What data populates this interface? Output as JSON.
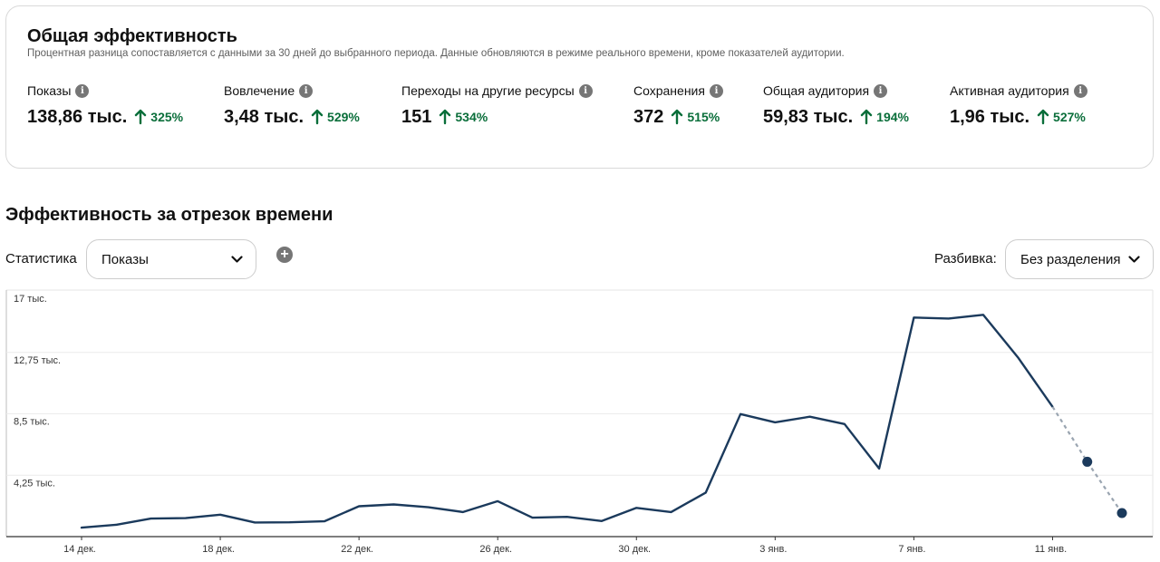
{
  "summary": {
    "title": "Общая эффективность",
    "subtitle": "Процентная разница сопоставляется с данными за 30 дней до выбранного периода. Данные обновляются в режиме реального времени, кроме показателей аудитории.",
    "metrics": [
      {
        "label": "Показы",
        "value": "138,86 тыс.",
        "change": "325%"
      },
      {
        "label": "Вовлечение",
        "value": "3,48 тыс.",
        "change": "529%"
      },
      {
        "label": "Переходы на другие ресурсы",
        "value": "151",
        "change": "534%"
      },
      {
        "label": "Сохранения",
        "value": "372",
        "change": "515%"
      },
      {
        "label": "Общая аудитория",
        "value": "59,83 тыс.",
        "change": "194%"
      },
      {
        "label": "Активная аудитория",
        "value": "1,96 тыс.",
        "change": "527%"
      }
    ],
    "info_icon": "info-icon",
    "trend_icon": "arrow-up-icon",
    "positive_color": "#0a6e3a"
  },
  "timeline": {
    "title": "Эффективность за отрезок времени",
    "stat_label": "Статистика",
    "stat_selected": "Показы",
    "add_icon": "plus-circle-icon",
    "breakdown_label": "Разбивка:",
    "breakdown_selected": "Без разделения"
  },
  "chart_data": {
    "type": "line",
    "x": [
      "14 дек.",
      "15 дек.",
      "16 дек.",
      "17 дек.",
      "18 дек.",
      "19 дек.",
      "20 дек.",
      "21 дек.",
      "22 дек.",
      "23 дек.",
      "24 дек.",
      "25 дек.",
      "26 дек.",
      "27 дек.",
      "28 дек.",
      "29 дек.",
      "30 дек.",
      "31 дек.",
      "1 янв.",
      "2 янв.",
      "3 янв.",
      "4 янв.",
      "5 янв.",
      "6 янв.",
      "7 янв.",
      "8 янв.",
      "9 янв.",
      "10 янв.",
      "11 янв.",
      "12 янв.",
      "13 янв."
    ],
    "series": [
      {
        "values": [
          620,
          820,
          1250,
          1280,
          1520,
          980,
          990,
          1060,
          2100,
          2230,
          2030,
          1700,
          2450,
          1310,
          1370,
          1080,
          1990,
          1700,
          3050,
          8480,
          7910,
          8300,
          7790,
          4710,
          15160,
          15090,
          15350,
          12410,
          8980,
          5180,
          1630
        ]
      }
    ],
    "projected_from_index": 28,
    "xticks": [
      "14 дек.",
      "18 дек.",
      "22 дек.",
      "26 дек.",
      "30 дек.",
      "3 янв.",
      "7 янв.",
      "11 янв."
    ],
    "yticks": [
      "4,25 тыс.",
      "8,5 тыс.",
      "12,75 тыс.",
      "17 тыс."
    ],
    "ytick_values": [
      4250,
      8500,
      12750,
      17000
    ],
    "ylim": [
      0,
      17000
    ],
    "grid": true,
    "line_color": "#1b3a5c",
    "projection_color": "#9aa5b1"
  }
}
